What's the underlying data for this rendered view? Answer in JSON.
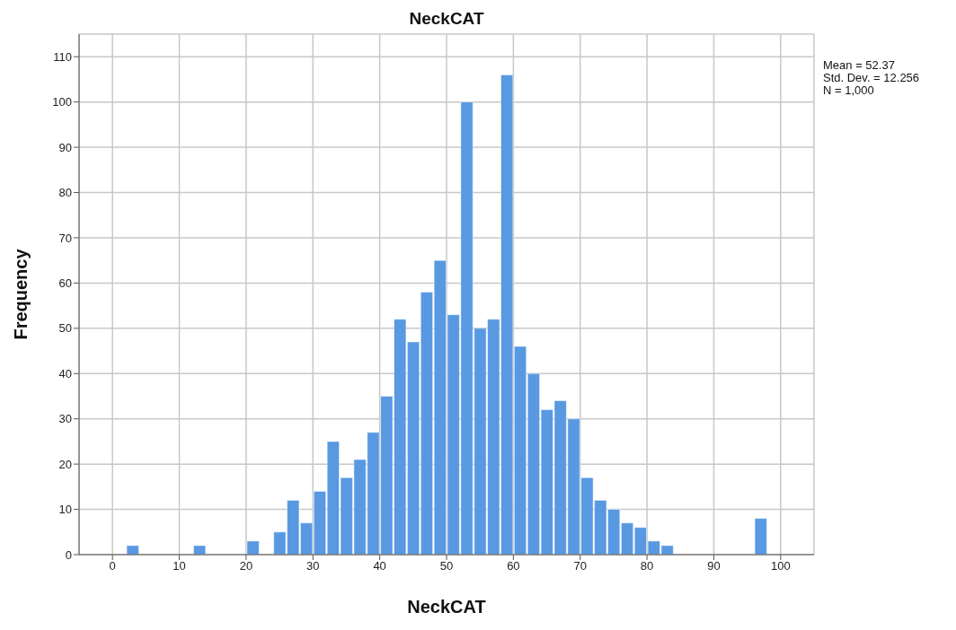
{
  "chart_data": {
    "type": "histogram",
    "title": "NeckCAT",
    "xlabel": "NeckCAT",
    "ylabel": "Frequency",
    "bins": [
      2,
      4,
      6,
      8,
      10,
      12,
      14,
      16,
      18,
      20,
      22,
      24,
      26,
      28,
      30,
      32,
      34,
      36,
      38,
      40,
      42,
      44,
      46,
      48,
      50,
      52,
      54,
      56,
      58,
      60,
      62,
      64,
      66,
      68,
      70,
      72,
      74,
      76,
      78,
      80,
      82,
      84,
      86,
      88,
      90,
      92,
      94,
      96,
      98
    ],
    "values": [
      2,
      0,
      0,
      0,
      0,
      2,
      0,
      0,
      0,
      3,
      0,
      5,
      12,
      7,
      14,
      25,
      17,
      21,
      27,
      35,
      52,
      47,
      58,
      65,
      53,
      100,
      50,
      52,
      106,
      46,
      40,
      32,
      34,
      30,
      17,
      12,
      10,
      7,
      6,
      3,
      2,
      0,
      0,
      0,
      0,
      0,
      0,
      8
    ],
    "color": "#5899e2",
    "xlim": [
      -5,
      105
    ],
    "xticks": [
      0,
      10,
      20,
      30,
      40,
      50,
      60,
      70,
      80,
      90,
      100
    ],
    "ylim": [
      0,
      115
    ],
    "yticks": [
      0,
      10,
      20,
      30,
      40,
      50,
      60,
      70,
      80,
      90,
      100,
      110
    ],
    "grid": true,
    "annotations": [
      "Mean = 52.37",
      "Std. Dev. = 12.256",
      "N = 1,000"
    ]
  }
}
